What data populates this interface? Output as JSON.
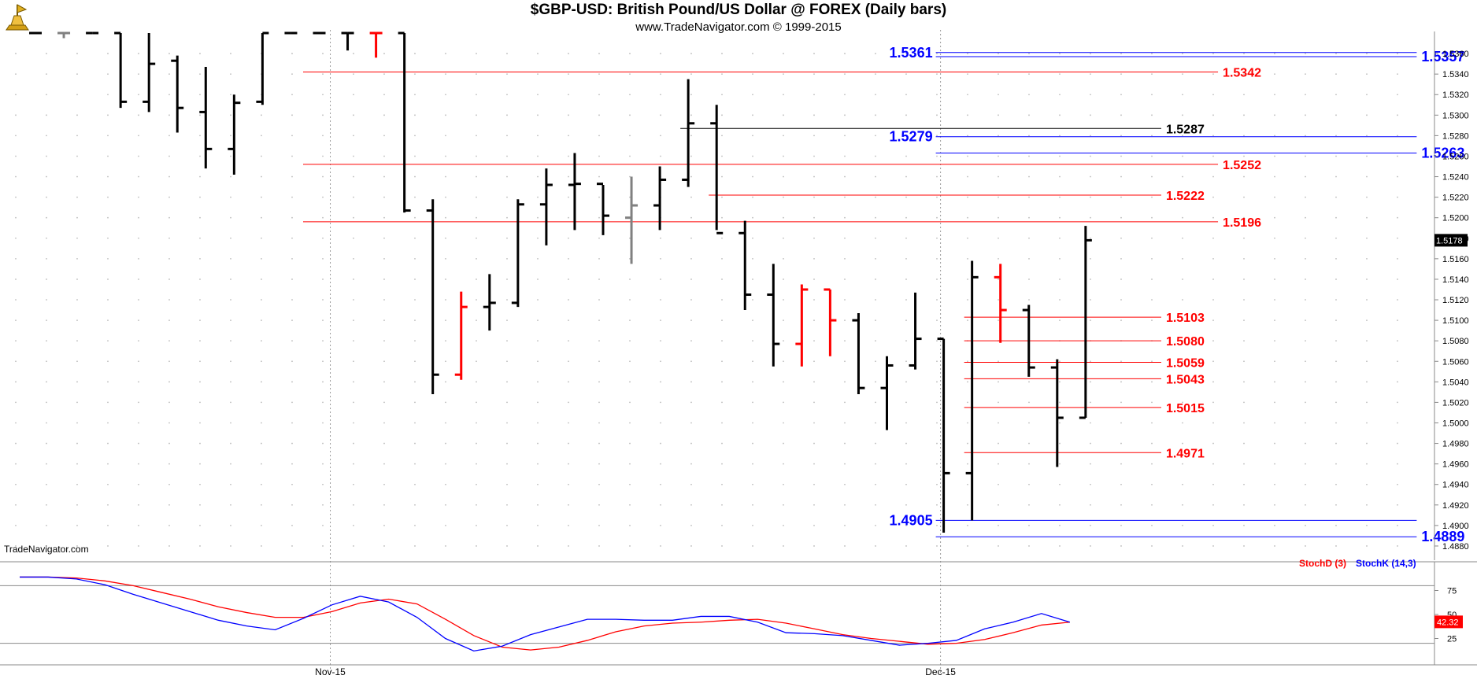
{
  "header": {
    "title": "$GBP-USD:  British Pound/US Dollar @ FOREX  (Daily bars)",
    "subtitle": "www.TradeNavigator.com © 1999-2015"
  },
  "watermark": "TradeNavigator.com",
  "colors": {
    "up_bar": "#000000",
    "down_bar": "#ff0000",
    "neutral_bar": "#808080",
    "red_level": "#ff0000",
    "blue_level": "#0000ff",
    "black_level": "#000000",
    "stoch_d": "#ff0000",
    "stoch_k": "#0000ff"
  },
  "chart_data": [
    {
      "type": "ohlc",
      "title": "$GBP-USD:  British Pound/US Dollar @ FOREX  (Daily bars)",
      "ylim": [
        1.487,
        1.538
      ],
      "y_ticks": [
        "1.5360",
        "1.5340",
        "1.5320",
        "1.5300",
        "1.5280",
        "1.5260",
        "1.5240",
        "1.5220",
        "1.5200",
        "1.5180",
        "1.5160",
        "1.5140",
        "1.5120",
        "1.5100",
        "1.5080",
        "1.5060",
        "1.5040",
        "1.5020",
        "1.5000",
        "1.4980",
        "1.4960",
        "1.4940",
        "1.4920",
        "1.4900",
        "1.4880"
      ],
      "x_labels": [
        {
          "label": "Nov-15",
          "index": 10.5
        },
        {
          "label": "Dec-15",
          "index": 32
        }
      ],
      "last_price": "1.5178",
      "grid": true,
      "bars": [
        {
          "o": 1.538,
          "h": 1.538,
          "l": 1.538,
          "c": 1.538,
          "dir": "up"
        },
        {
          "o": 1.538,
          "h": 1.538,
          "l": 1.5375,
          "c": 1.538,
          "dir": "neutral"
        },
        {
          "o": 1.538,
          "h": 1.538,
          "l": 1.538,
          "c": 1.538,
          "dir": "up"
        },
        {
          "o": 1.538,
          "h": 1.538,
          "l": 1.5307,
          "c": 1.5313,
          "dir": "up"
        },
        {
          "o": 1.5313,
          "h": 1.538,
          "l": 1.5303,
          "c": 1.535,
          "dir": "up"
        },
        {
          "o": 1.5353,
          "h": 1.5358,
          "l": 1.5283,
          "c": 1.5307,
          "dir": "up"
        },
        {
          "o": 1.5303,
          "h": 1.5347,
          "l": 1.5248,
          "c": 1.5267,
          "dir": "up"
        },
        {
          "o": 1.5267,
          "h": 1.532,
          "l": 1.5242,
          "c": 1.5312,
          "dir": "up"
        },
        {
          "o": 1.5313,
          "h": 1.538,
          "l": 1.531,
          "c": 1.538,
          "dir": "up"
        },
        {
          "o": 1.538,
          "h": 1.538,
          "l": 1.538,
          "c": 1.538,
          "dir": "up"
        },
        {
          "o": 1.538,
          "h": 1.538,
          "l": 1.538,
          "c": 1.538,
          "dir": "up"
        },
        {
          "o": 1.538,
          "h": 1.538,
          "l": 1.5363,
          "c": 1.538,
          "dir": "up"
        },
        {
          "o": 1.538,
          "h": 1.538,
          "l": 1.5356,
          "c": 1.538,
          "dir": "down"
        },
        {
          "o": 1.538,
          "h": 1.538,
          "l": 1.5205,
          "c": 1.5207,
          "dir": "up"
        },
        {
          "o": 1.5207,
          "h": 1.5218,
          "l": 1.5028,
          "c": 1.5047,
          "dir": "up"
        },
        {
          "o": 1.5047,
          "h": 1.5128,
          "l": 1.5042,
          "c": 1.5113,
          "dir": "down"
        },
        {
          "o": 1.5113,
          "h": 1.5145,
          "l": 1.509,
          "c": 1.5117,
          "dir": "up"
        },
        {
          "o": 1.5117,
          "h": 1.5218,
          "l": 1.5113,
          "c": 1.5213,
          "dir": "up"
        },
        {
          "o": 1.5213,
          "h": 1.5248,
          "l": 1.5173,
          "c": 1.5232,
          "dir": "up"
        },
        {
          "o": 1.5232,
          "h": 1.5263,
          "l": 1.5188,
          "c": 1.5233,
          "dir": "up"
        },
        {
          "o": 1.5233,
          "h": 1.5232,
          "l": 1.5183,
          "c": 1.5202,
          "dir": "up"
        },
        {
          "o": 1.52,
          "h": 1.524,
          "l": 1.5155,
          "c": 1.5212,
          "dir": "neutral"
        },
        {
          "o": 1.5212,
          "h": 1.525,
          "l": 1.5188,
          "c": 1.5237,
          "dir": "up"
        },
        {
          "o": 1.5237,
          "h": 1.5335,
          "l": 1.523,
          "c": 1.5292,
          "dir": "up"
        },
        {
          "o": 1.5292,
          "h": 1.531,
          "l": 1.5188,
          "c": 1.5185,
          "dir": "up"
        },
        {
          "o": 1.5185,
          "h": 1.5197,
          "l": 1.511,
          "c": 1.5125,
          "dir": "up"
        },
        {
          "o": 1.5125,
          "h": 1.5155,
          "l": 1.5055,
          "c": 1.5077,
          "dir": "up"
        },
        {
          "o": 1.5077,
          "h": 1.5135,
          "l": 1.5055,
          "c": 1.513,
          "dir": "down"
        },
        {
          "o": 1.513,
          "h": 1.513,
          "l": 1.5065,
          "c": 1.51,
          "dir": "down"
        },
        {
          "o": 1.51,
          "h": 1.5107,
          "l": 1.5028,
          "c": 1.5034,
          "dir": "up"
        },
        {
          "o": 1.5034,
          "h": 1.5065,
          "l": 1.4993,
          "c": 1.5056,
          "dir": "up"
        },
        {
          "o": 1.5056,
          "h": 1.5127,
          "l": 1.5052,
          "c": 1.5082,
          "dir": "up"
        },
        {
          "o": 1.5082,
          "h": 1.5082,
          "l": 1.4893,
          "c": 1.4951,
          "dir": "up"
        },
        {
          "o": 1.4951,
          "h": 1.5158,
          "l": 1.4905,
          "c": 1.5142,
          "dir": "up"
        },
        {
          "o": 1.5142,
          "h": 1.5155,
          "l": 1.5078,
          "c": 1.511,
          "dir": "down"
        },
        {
          "o": 1.511,
          "h": 1.5115,
          "l": 1.5045,
          "c": 1.5054,
          "dir": "up"
        },
        {
          "o": 1.5054,
          "h": 1.5062,
          "l": 1.4957,
          "c": 1.5005,
          "dir": "up"
        },
        {
          "o": 1.5005,
          "h": 1.5192,
          "l": 1.5005,
          "c": 1.5178,
          "dir": "up"
        }
      ],
      "levels": [
        {
          "value": 1.5361,
          "label": "1.5361",
          "color": "blue",
          "label_side": "left",
          "from": 32,
          "to": 48,
          "big": true
        },
        {
          "value": 1.5357,
          "label": "1.5357",
          "color": "blue",
          "label_side": "right",
          "from": 32,
          "to": 48,
          "big": true
        },
        {
          "value": 1.5342,
          "label": "1.5342",
          "color": "red",
          "label_side": "right",
          "from": 11,
          "to": 41,
          "big": false
        },
        {
          "value": 1.5287,
          "label": "1.5287",
          "color": "black",
          "label_side": "right",
          "from": 23,
          "to": 39,
          "big": false
        },
        {
          "value": 1.5279,
          "label": "1.5279",
          "color": "blue",
          "label_side": "left",
          "from": 32,
          "to": 48,
          "big": true
        },
        {
          "value": 1.5263,
          "label": "1.5263",
          "color": "blue",
          "label_side": "right",
          "from": 32,
          "to": 48,
          "big": true
        },
        {
          "value": 1.5252,
          "label": "1.5252",
          "color": "red",
          "label_side": "right",
          "from": 11,
          "to": 41,
          "big": false
        },
        {
          "value": 1.5222,
          "label": "1.5222",
          "color": "red",
          "label_side": "right",
          "from": 24,
          "to": 39,
          "big": false
        },
        {
          "value": 1.5196,
          "label": "1.5196",
          "color": "red",
          "label_side": "right",
          "from": 11,
          "to": 41,
          "big": false
        },
        {
          "value": 1.5103,
          "label": "1.5103",
          "color": "red",
          "label_side": "right",
          "from": 33,
          "to": 39,
          "big": false
        },
        {
          "value": 1.508,
          "label": "1.5080",
          "color": "red",
          "label_side": "right",
          "from": 33,
          "to": 39,
          "big": false
        },
        {
          "value": 1.5059,
          "label": "1.5059",
          "color": "red",
          "label_side": "right",
          "from": 33,
          "to": 39,
          "big": false
        },
        {
          "value": 1.5043,
          "label": "1.5043",
          "color": "red",
          "label_side": "right",
          "from": 33,
          "to": 39,
          "big": false
        },
        {
          "value": 1.5015,
          "label": "1.5015",
          "color": "red",
          "label_side": "right",
          "from": 33,
          "to": 39,
          "big": false
        },
        {
          "value": 1.4971,
          "label": "1.4971",
          "color": "red",
          "label_side": "right",
          "from": 33,
          "to": 39,
          "big": false
        },
        {
          "value": 1.4905,
          "label": "1.4905",
          "color": "blue",
          "label_side": "left",
          "from": 32,
          "to": 48,
          "big": true
        },
        {
          "value": 1.4889,
          "label": "1.4889",
          "color": "blue",
          "label_side": "right",
          "from": 32,
          "to": 48,
          "big": true
        }
      ]
    },
    {
      "type": "line",
      "ylim": [
        0,
        100
      ],
      "y_ticks": [
        "75",
        "50",
        "25"
      ],
      "ref_lines": [
        80,
        20
      ],
      "last_value": "42.32",
      "series": [
        {
          "name": "StochD (3)",
          "color": "#ff0000",
          "values": [
            89,
            89,
            88,
            85,
            80,
            73,
            66,
            58,
            52,
            47,
            47,
            53,
            62,
            66,
            61,
            45,
            28,
            16,
            13,
            16,
            23,
            32,
            38,
            41,
            42,
            44,
            45,
            41,
            35,
            29,
            25,
            22,
            19,
            20,
            24,
            31,
            39,
            42
          ]
        },
        {
          "name": "StochK (14,3)",
          "color": "#0000ff",
          "values": [
            89,
            89,
            87,
            81,
            71,
            62,
            53,
            44,
            38,
            34,
            46,
            60,
            69,
            63,
            47,
            25,
            12,
            17,
            29,
            37,
            45,
            45,
            44,
            44,
            48,
            48,
            42,
            31,
            30,
            28,
            23,
            18,
            20,
            23,
            35,
            42,
            51,
            42
          ]
        }
      ]
    }
  ]
}
